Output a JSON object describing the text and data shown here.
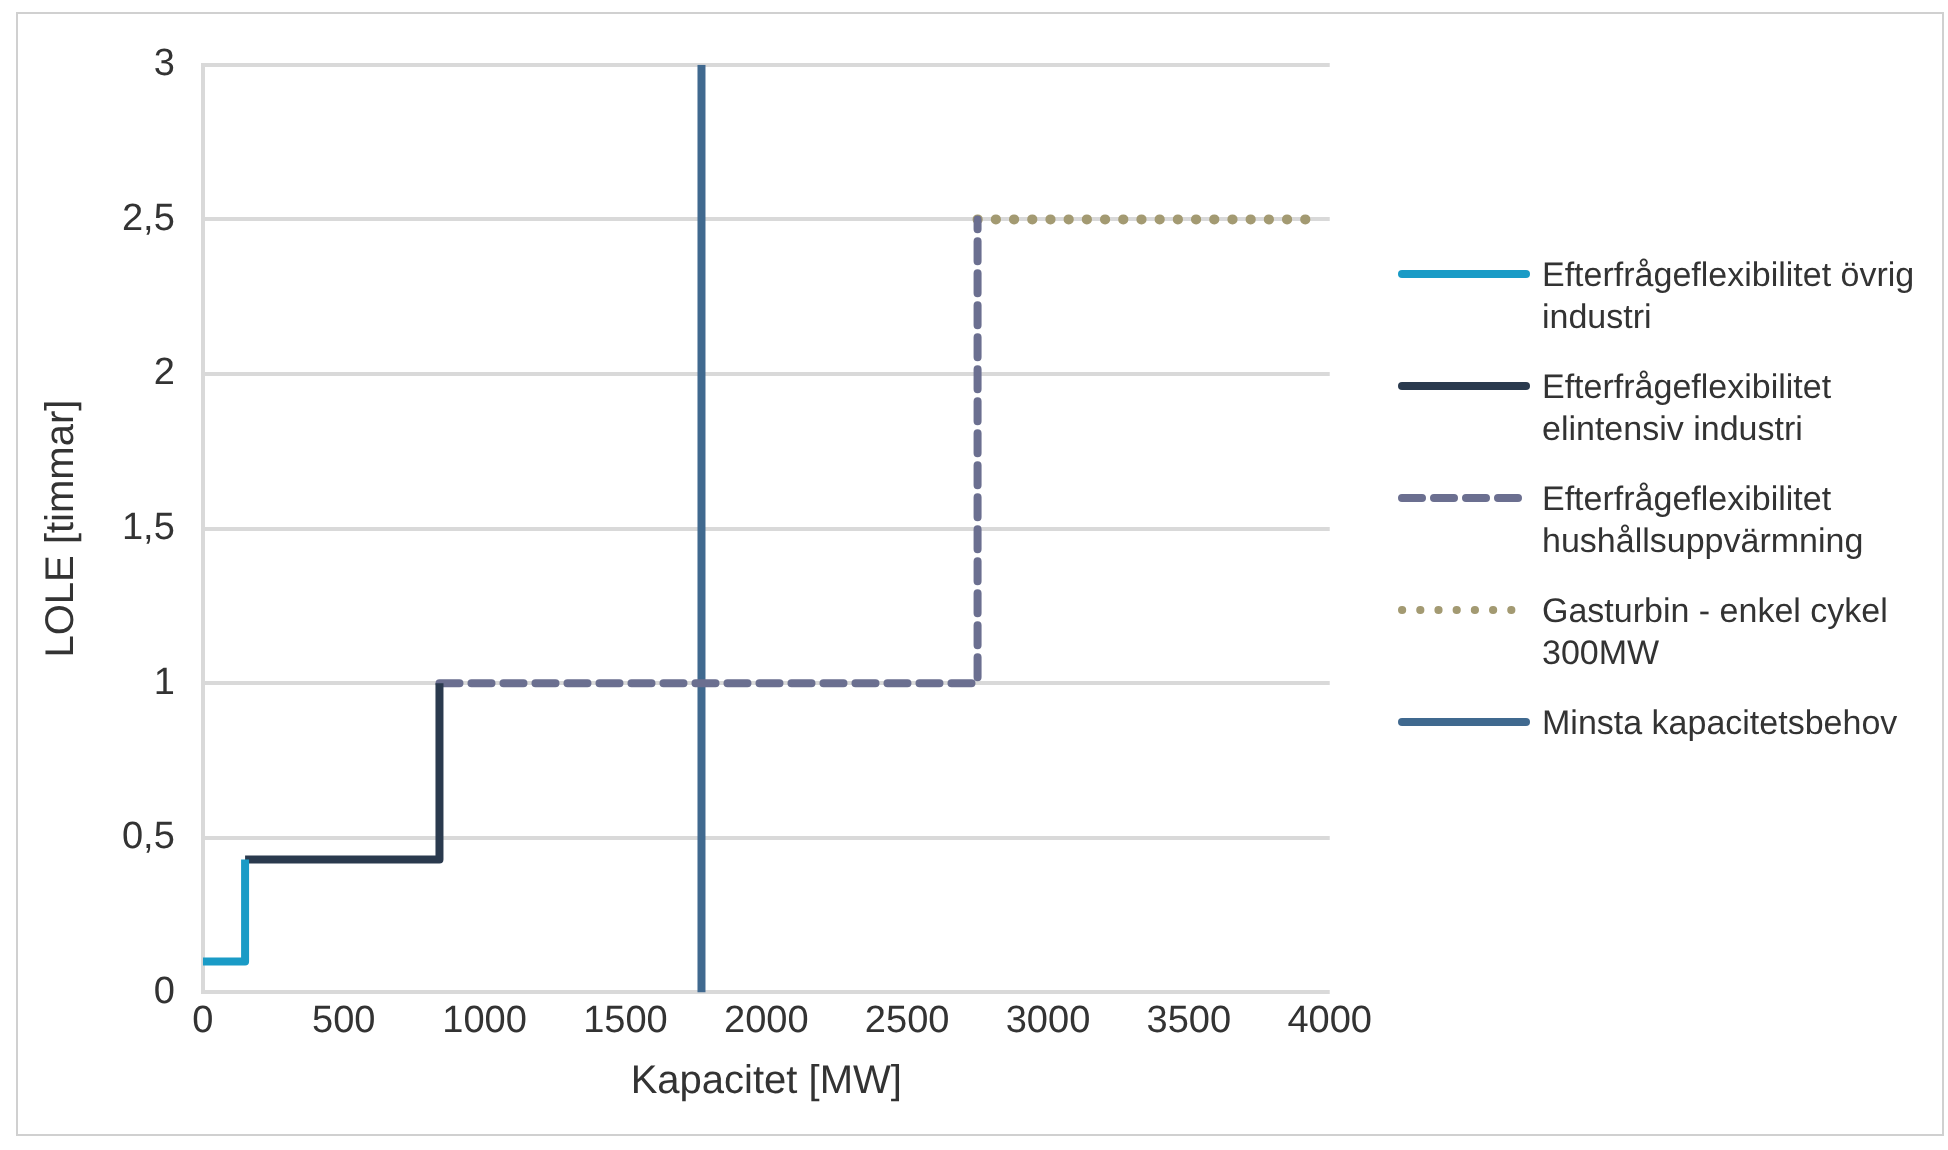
{
  "chart_data": {
    "type": "line",
    "xlabel": "Kapacitet [MW]",
    "ylabel": "LOLE [timmar]",
    "xlim": [
      0,
      4000
    ],
    "xticks": [
      0,
      500,
      1000,
      1500,
      2000,
      2500,
      3000,
      3500,
      4000
    ],
    "ylim": [
      0,
      3
    ],
    "yticks": [
      0,
      {
        "value": 0.5,
        "label": "0,5"
      },
      1,
      {
        "value": 1.5,
        "label": "1,5"
      },
      2,
      {
        "value": 2.5,
        "label": "2,5"
      },
      3
    ],
    "grid": "y",
    "legend": "right",
    "marker": "none",
    "series": [
      {
        "name": "Efterfrågeflexibilitet övrig industri",
        "color": "#1a9bc6",
        "line_style": "solid",
        "x": [
          0,
          150,
          150
        ],
        "values": [
          0.1,
          0.1,
          0.43
        ]
      },
      {
        "name": "Efterfrågeflexibilitet elintensiv industri",
        "color": "#2a3a4e",
        "line_style": "solid",
        "x": [
          150,
          840,
          840
        ],
        "values": [
          0.43,
          0.43,
          1
        ]
      },
      {
        "name": "Efterfrågeflexibilitet hushållsuppvärmning",
        "color": "#6b6f90",
        "line_style": "dashed",
        "x": [
          840,
          2750,
          2750
        ],
        "values": [
          1,
          1,
          2.5
        ]
      },
      {
        "name": "Gasturbin - enkel cykel 300MW",
        "color": "#a39a72",
        "line_style": "dotted",
        "x": [
          2750,
          3950
        ],
        "values": [
          2.5,
          2.5
        ]
      },
      {
        "name": "Minsta kapacitetsbehov",
        "color": "#40698f",
        "line_style": "solid",
        "x": [
          1770,
          1770
        ],
        "values": [
          0,
          3
        ]
      }
    ]
  }
}
